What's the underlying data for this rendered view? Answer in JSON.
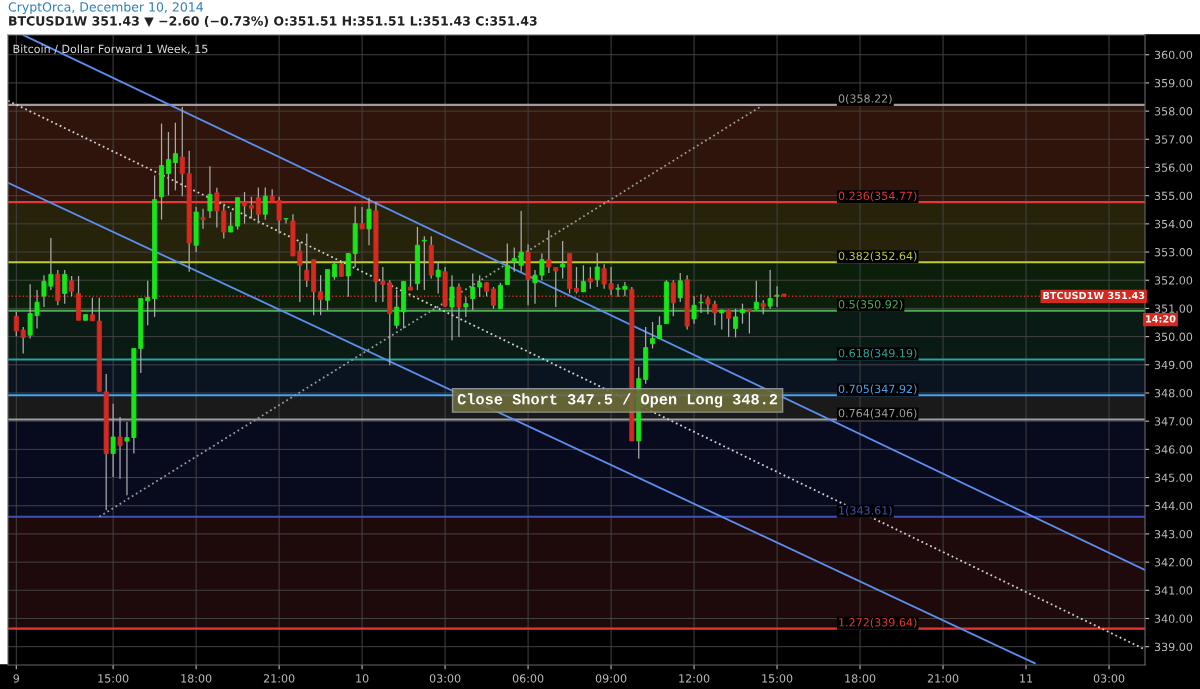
{
  "chart_data": {
    "type": "candlestick",
    "title": "Bitcoin / Dollar Forward 1 Week, 15",
    "subtitle": "BTCUSD1W 351.43 ▼ −2.60 (−0.73%) O:351.51 H:351.51 L:351.43 C:351.43",
    "annotations": [
      "CryptOrca, December 10, 2014",
      "Close Short 347.5 / Open Long 348.2",
      {
        "text": "14:20",
        "y": 350.6
      }
    ],
    "colors": [
      "#d42a20",
      "#d42a20",
      "#19e619",
      "#19e619",
      "#19e619",
      "#19e619",
      "#d42a20",
      "#19e619",
      "#d42a20",
      "#d42a20",
      "#19e619",
      "#d42a20",
      "#d42a20",
      "#d42a20",
      "#19e619",
      "#d42a20",
      "#19e619",
      "#19e619",
      "#19e619",
      "#19e619",
      "#19e619",
      "#19e619",
      "#19e619",
      "#19e619",
      "#d42a20",
      "#d42a20",
      "#19e619",
      "#d42a20",
      "#19e619",
      "#d42a20",
      "#d42a20",
      "#19e619",
      "#19e619",
      "#d42a20",
      "#d42a20",
      "#d42a20",
      "#19e619",
      "#d42a20",
      "#d42a20",
      "#19e619",
      "#d42a20",
      "#d42a20",
      "#d42a20",
      "#d42a20",
      "#d42a20",
      "#19e619",
      "#19e619",
      "#d42a20",
      "#19e619",
      "#19e619",
      "#d42a20",
      "#19e619",
      "#d42a20",
      "#d42a20",
      "#d42a20",
      "#19e619",
      "#19e619",
      "#d42a20",
      "#19e619",
      "#19e619",
      "#d42a20",
      "#19e619",
      "#d42a20",
      "#19e619",
      "#d42a20",
      "#19e619",
      "#19e619",
      "#19e619",
      "#d42a20",
      "#d42a20",
      "#19e619",
      "#19e619",
      "#19e619",
      "#19e619",
      "#d42a20",
      "#19e619",
      "#19e619",
      "#d42a20",
      "#d42a20",
      "#19e619",
      "#d42a20",
      "#d42a20",
      "#19e619",
      "#d42a20",
      "#19e619",
      "#d42a20",
      "#d42a20",
      "#19e619",
      "#19e619",
      "#d42a20",
      "#19e619",
      "#19e619",
      "#19e619",
      "#19e619",
      "#19e619",
      "#d42a20",
      "#19e619",
      "#d42a20",
      "#19e619",
      "#19e619",
      "#d42a20",
      "#d42a20",
      "#19e619",
      "#d42a20",
      "#19e619",
      "#19e619",
      "#d42a20",
      "#19e619",
      "#d42a20",
      "#19e619",
      "#19e619",
      "#d42a20"
    ],
    "x": [
      "2014-12-09T11:30",
      "2014-12-09T11:45",
      "2014-12-09T12:00",
      "2014-12-09T12:15",
      "2014-12-09T12:30",
      "2014-12-09T12:45",
      "2014-12-09T13:00",
      "2014-12-09T13:15",
      "2014-12-09T13:30",
      "2014-12-09T13:45",
      "2014-12-09T14:00",
      "2014-12-09T14:15",
      "2014-12-09T14:30",
      "2014-12-09T14:45",
      "2014-12-09T15:00",
      "2014-12-09T15:15",
      "2014-12-09T15:30",
      "2014-12-09T15:45",
      "2014-12-09T16:00",
      "2014-12-09T16:15",
      "2014-12-09T16:30",
      "2014-12-09T16:45",
      "2014-12-09T17:00",
      "2014-12-09T17:15",
      "2014-12-09T17:30",
      "2014-12-09T17:45",
      "2014-12-09T18:00",
      "2014-12-09T18:15",
      "2014-12-09T18:30",
      "2014-12-09T18:45",
      "2014-12-09T19:00",
      "2014-12-09T19:15",
      "2014-12-09T19:30",
      "2014-12-09T19:45",
      "2014-12-09T20:00",
      "2014-12-09T20:15",
      "2014-12-09T20:30",
      "2014-12-09T20:45",
      "2014-12-09T21:00",
      "2014-12-09T21:15",
      "2014-12-09T21:30",
      "2014-12-09T21:45",
      "2014-12-09T22:00",
      "2014-12-09T22:15",
      "2014-12-09T22:30",
      "2014-12-09T22:45",
      "2014-12-09T23:00",
      "2014-12-09T23:15",
      "2014-12-09T23:30",
      "2014-12-09T23:45",
      "2014-12-10T00:00",
      "2014-12-10T00:15",
      "2014-12-10T00:30",
      "2014-12-10T00:45",
      "2014-12-10T01:00",
      "2014-12-10T01:15",
      "2014-12-10T01:30",
      "2014-12-10T01:45",
      "2014-12-10T02:00",
      "2014-12-10T02:15",
      "2014-12-10T02:30",
      "2014-12-10T02:45",
      "2014-12-10T03:00",
      "2014-12-10T03:15",
      "2014-12-10T03:30",
      "2014-12-10T03:45",
      "2014-12-10T04:00",
      "2014-12-10T04:15",
      "2014-12-10T04:30",
      "2014-12-10T04:45",
      "2014-12-10T05:00",
      "2014-12-10T05:15",
      "2014-12-10T05:30",
      "2014-12-10T05:45",
      "2014-12-10T06:00",
      "2014-12-10T06:15",
      "2014-12-10T06:30",
      "2014-12-10T06:45",
      "2014-12-10T07:00",
      "2014-12-10T07:15",
      "2014-12-10T07:30",
      "2014-12-10T07:45",
      "2014-12-10T08:00",
      "2014-12-10T08:15",
      "2014-12-10T08:30",
      "2014-12-10T08:45",
      "2014-12-10T09:00",
      "2014-12-10T09:15",
      "2014-12-10T09:30",
      "2014-12-10T09:45",
      "2014-12-10T10:00",
      "2014-12-10T10:15",
      "2014-12-10T10:30",
      "2014-12-10T10:45",
      "2014-12-10T11:00",
      "2014-12-10T11:15",
      "2014-12-10T11:30",
      "2014-12-10T11:45",
      "2014-12-10T12:00",
      "2014-12-10T12:15",
      "2014-12-10T12:30",
      "2014-12-10T12:45",
      "2014-12-10T13:00",
      "2014-12-10T13:15",
      "2014-12-10T13:30",
      "2014-12-10T13:45",
      "2014-12-10T14:00",
      "2014-12-10T14:15",
      "2014-12-10T14:30",
      "2014-12-10T14:45",
      "2014-12-10T15:00",
      "2014-12-10T15:15"
    ],
    "ohlc": [
      [
        350.72,
        350.88,
        350.01,
        350.2
      ],
      [
        350.23,
        350.34,
        349.4,
        349.97
      ],
      [
        350.05,
        351.86,
        349.93,
        350.82
      ],
      [
        350.75,
        351.65,
        350.29,
        351.22
      ],
      [
        351.44,
        352.18,
        351.05,
        351.96
      ],
      [
        351.79,
        353.5,
        351.65,
        352.21
      ],
      [
        352.21,
        352.36,
        351.11,
        351.27
      ],
      [
        351.53,
        352.36,
        351.17,
        352.21
      ],
      [
        351.98,
        352.15,
        351.43,
        351.61
      ],
      [
        351.53,
        352.15,
        350.58,
        350.58
      ],
      [
        350.58,
        350.78,
        350.58,
        350.78
      ],
      [
        350.78,
        351.38,
        350.56,
        350.56
      ],
      [
        350.55,
        351.38,
        348.04,
        348.06
      ],
      [
        348.04,
        348.67,
        343.84,
        345.85
      ],
      [
        345.85,
        347.62,
        345.02,
        346.44
      ],
      [
        346.44,
        347.15,
        344.96,
        346.13
      ],
      [
        346.29,
        346.97,
        344.37,
        346.42
      ],
      [
        346.42,
        349.58,
        345.85,
        349.58
      ],
      [
        349.58,
        351.35,
        348.71,
        351.35
      ],
      [
        351.27,
        351.98,
        350.4,
        351.39
      ],
      [
        351.35,
        355.72,
        350.7,
        354.86
      ],
      [
        354.96,
        357.56,
        354.15,
        356.07
      ],
      [
        355.78,
        357.26,
        355.01,
        356.28
      ],
      [
        356.17,
        357.59,
        355.19,
        356.49
      ],
      [
        356.37,
        358.15,
        354.98,
        355.78
      ],
      [
        355.78,
        356.59,
        352.3,
        353.32
      ],
      [
        353.24,
        354.6,
        353.0,
        354.42
      ],
      [
        354.22,
        354.54,
        353.83,
        354.15
      ],
      [
        354.46,
        356.04,
        354.21,
        355.05
      ],
      [
        355.1,
        355.28,
        353.87,
        354.46
      ],
      [
        354.46,
        354.66,
        353.48,
        353.71
      ],
      [
        353.71,
        354.42,
        353.71,
        353.92
      ],
      [
        353.92,
        354.93,
        353.8,
        354.93
      ],
      [
        354.77,
        355.13,
        354.01,
        354.64
      ],
      [
        354.65,
        354.96,
        354.19,
        354.55
      ],
      [
        354.93,
        355.29,
        354.01,
        354.34
      ],
      [
        354.34,
        355.29,
        354.15,
        354.98
      ],
      [
        354.98,
        355.23,
        354.81,
        354.81
      ],
      [
        354.83,
        354.96,
        353.66,
        354.13
      ],
      [
        354.17,
        354.19,
        354.01,
        354.19
      ],
      [
        354.1,
        354.34,
        352.86,
        352.86
      ],
      [
        353.03,
        353.36,
        351.23,
        352.53
      ],
      [
        352.35,
        353.66,
        351.76,
        352.0
      ],
      [
        352.73,
        352.73,
        350.76,
        351.59
      ],
      [
        351.59,
        352.18,
        350.76,
        351.31
      ],
      [
        351.29,
        352.38,
        350.94,
        352.38
      ],
      [
        352.12,
        352.65,
        352.02,
        352.57
      ],
      [
        352.57,
        352.62,
        352.12,
        352.14
      ],
      [
        352.15,
        352.95,
        351.41,
        352.95
      ],
      [
        352.95,
        354.62,
        352.47,
        354.01
      ],
      [
        354.01,
        354.6,
        353.82,
        353.82
      ],
      [
        353.82,
        354.93,
        353.24,
        354.52
      ],
      [
        354.46,
        354.78,
        351.23,
        351.94
      ],
      [
        351.96,
        352.47,
        351.23,
        351.85
      ],
      [
        351.91,
        352.0,
        348.98,
        350.82
      ],
      [
        350.4,
        351.65,
        350.29,
        351.05
      ],
      [
        350.88,
        351.96,
        350.29,
        351.96
      ],
      [
        351.76,
        352.59,
        351.65,
        351.65
      ],
      [
        351.88,
        353.89,
        351.65,
        353.24
      ],
      [
        353.39,
        353.56,
        351.65,
        353.42
      ],
      [
        353.24,
        353.56,
        352.06,
        352.18
      ],
      [
        352.12,
        352.65,
        351.53,
        352.36
      ],
      [
        352.3,
        352.47,
        351.05,
        351.08
      ],
      [
        351.05,
        352.18,
        349.87,
        351.76
      ],
      [
        351.76,
        351.88,
        349.99,
        351.05
      ],
      [
        351.05,
        351.41,
        350.7,
        351.17
      ],
      [
        351.35,
        352.24,
        350.94,
        351.76
      ],
      [
        351.76,
        352.18,
        351.41,
        351.91
      ],
      [
        351.91,
        351.94,
        351.43,
        351.61
      ],
      [
        351.69,
        351.76,
        350.99,
        351.11
      ],
      [
        350.99,
        351.91,
        350.99,
        351.82
      ],
      [
        351.85,
        353.3,
        351.85,
        352.53
      ],
      [
        352.65,
        353.16,
        352.3,
        352.77
      ],
      [
        352.53,
        354.46,
        352.3,
        353.0
      ],
      [
        353.0,
        353.28,
        351.11,
        352.03
      ],
      [
        351.91,
        352.36,
        351.17,
        352.18
      ],
      [
        352.18,
        352.95,
        352.0,
        352.73
      ],
      [
        352.73,
        353.77,
        352.26,
        352.47
      ],
      [
        352.45,
        352.47,
        351.05,
        352.33
      ],
      [
        352.47,
        353.39,
        352.06,
        352.57
      ],
      [
        352.95,
        352.95,
        351.53,
        351.7
      ],
      [
        351.71,
        352.47,
        351.53,
        351.6
      ],
      [
        351.59,
        352.53,
        351.59,
        351.96
      ],
      [
        352.06,
        352.47,
        351.7,
        351.94
      ],
      [
        352.02,
        352.97,
        351.76,
        352.47
      ],
      [
        352.41,
        352.57,
        351.7,
        351.86
      ],
      [
        351.88,
        352.47,
        351.47,
        351.68
      ],
      [
        351.68,
        351.86,
        351.41,
        351.72
      ],
      [
        351.68,
        351.94,
        351.43,
        351.79
      ],
      [
        351.68,
        351.76,
        346.3,
        346.3
      ],
      [
        346.3,
        348.93,
        345.67,
        348.51
      ],
      [
        348.48,
        350.34,
        348.33,
        349.61
      ],
      [
        349.75,
        350.52,
        349.58,
        349.93
      ],
      [
        349.93,
        350.72,
        349.93,
        350.4
      ],
      [
        350.46,
        352.0,
        350.46,
        351.94
      ],
      [
        351.91,
        352.0,
        350.72,
        351.2
      ],
      [
        351.38,
        352.26,
        351.23,
        351.98
      ],
      [
        352.02,
        352.18,
        350.25,
        350.37
      ],
      [
        350.63,
        351.43,
        350.46,
        351.11
      ],
      [
        351.2,
        351.5,
        350.84,
        351.22
      ],
      [
        351.34,
        351.41,
        350.79,
        351.15
      ],
      [
        351.15,
        351.27,
        350.4,
        350.84
      ],
      [
        350.84,
        350.96,
        350.25,
        350.94
      ],
      [
        350.94,
        350.96,
        349.99,
        350.65
      ],
      [
        350.29,
        350.99,
        349.97,
        350.7
      ],
      [
        350.84,
        351.17,
        350.46,
        350.96
      ],
      [
        350.96,
        350.96,
        350.11,
        350.89
      ],
      [
        350.98,
        351.98,
        350.94,
        351.22
      ],
      [
        351.17,
        351.29,
        350.79,
        351.05
      ],
      [
        351.08,
        352.36,
        350.99,
        351.35
      ],
      [
        351.43,
        351.79,
        351.05,
        351.47
      ],
      [
        351.51,
        351.51,
        351.43,
        351.43
      ]
    ],
    "series": [
      {
        "type": "line",
        "x": [
          "2014-12-09T11:45",
          "2014-12-11T04:18"
        ],
        "values": [
          360.7,
          341.72
        ],
        "color": "#5b8ff0",
        "line_style": "solid"
      },
      {
        "type": "line",
        "x": [
          "2014-12-09T11:12",
          "2014-12-11T00:19"
        ],
        "values": [
          355.46,
          338.41
        ],
        "color": "#5b8ff0",
        "line_style": "solid"
      },
      {
        "type": "line",
        "x": [
          "2014-12-09T11:12",
          "2014-12-11T04:18"
        ],
        "values": [
          358.37,
          338.9
        ],
        "color": "#cfcfcf",
        "line_style": "dotted"
      },
      {
        "type": "line",
        "x": [
          "2014-12-09T14:30",
          "2014-12-10T14:30"
        ],
        "values": [
          343.61,
          358.22
        ],
        "color": "#9a9a9a",
        "line_style": "dotted"
      }
    ],
    "ref_lines": [
      {
        "axis": "y",
        "value": 358.22,
        "label": "0(358.22)",
        "color": "#9e9e9e"
      },
      {
        "axis": "y",
        "value": 354.77,
        "label": "0.236(354.77)",
        "color": "#e53935"
      },
      {
        "axis": "y",
        "value": 352.64,
        "label": "0.382(352.64)",
        "color": "#c0ca33"
      },
      {
        "axis": "y",
        "value": 350.92,
        "label": "0.5(350.92)",
        "color": "#4caf50"
      },
      {
        "axis": "y",
        "value": 349.19,
        "label": "0.618(349.19)",
        "color": "#26a69a"
      },
      {
        "axis": "y",
        "value": 347.92,
        "label": "0.705(347.92)",
        "color": "#42a5f5"
      },
      {
        "axis": "y",
        "value": 347.06,
        "label": "0.764(347.06)",
        "color": "#9e9e9e"
      },
      {
        "axis": "y",
        "value": 343.61,
        "label": "1(343.61)",
        "color": "#3f51b5"
      },
      {
        "axis": "y",
        "value": 339.64,
        "label": "1.272(339.64)",
        "color": "#e53935"
      },
      {
        "axis": "y",
        "value": 351.43,
        "label": "BTCUSD1W 351.43",
        "color": "#d42a20",
        "line_style": "dotted"
      }
    ],
    "bands": [
      {
        "axis": "y",
        "from": 354.77,
        "to": 358.22,
        "color": "#2e140a"
      },
      {
        "axis": "y",
        "from": 352.64,
        "to": 354.77,
        "color": "#26230a"
      },
      {
        "axis": "y",
        "from": 350.92,
        "to": 352.64,
        "color": "#0c1f0a"
      },
      {
        "axis": "y",
        "from": 349.19,
        "to": 350.92,
        "color": "#0a1a14"
      },
      {
        "axis": "y",
        "from": 347.92,
        "to": 349.19,
        "color": "#0a1420"
      },
      {
        "axis": "y",
        "from": 347.06,
        "to": 347.92,
        "color": "#1a1a1a"
      },
      {
        "axis": "y",
        "from": 343.61,
        "to": 347.06,
        "color": "#080a1e"
      },
      {
        "axis": "y",
        "from": 339.64,
        "to": 343.61,
        "color": "#1e0a0a"
      }
    ],
    "xlim": [
      "2014-12-09T11:12",
      "2014-12-11T04:18"
    ],
    "ylim": [
      338.35,
      360.7
    ],
    "xticks": [
      {
        "value": "2014-12-09T11:30",
        "label": "9"
      },
      {
        "value": "2014-12-09T15:00",
        "label": "15:00"
      },
      {
        "value": "2014-12-09T18:00",
        "label": "18:00"
      },
      {
        "value": "2014-12-09T21:00",
        "label": "21:00"
      },
      {
        "value": "2014-12-10T00:00",
        "label": "10"
      },
      {
        "value": "2014-12-10T03:00",
        "label": "03:00"
      },
      {
        "value": "2014-12-10T06:00",
        "label": "06:00"
      },
      {
        "value": "2014-12-10T09:00",
        "label": "09:00"
      },
      {
        "value": "2014-12-10T12:00",
        "label": "12:00"
      },
      {
        "value": "2014-12-10T15:00",
        "label": "15:00"
      },
      {
        "value": "2014-12-10T18:00",
        "label": "18:00"
      },
      {
        "value": "2014-12-10T21:00",
        "label": "21:00"
      },
      {
        "value": "2014-12-11T00:00",
        "label": "11"
      },
      {
        "value": "2014-12-11T03:00",
        "label": "03:00"
      }
    ],
    "yticks": [
      {
        "value": 339,
        "label": "339.00"
      },
      {
        "value": 340,
        "label": "340.00"
      },
      {
        "value": 341,
        "label": "341.00"
      },
      {
        "value": 342,
        "label": "342.00"
      },
      {
        "value": 343,
        "label": "343.00"
      },
      {
        "value": 344,
        "label": "344.00"
      },
      {
        "value": 345,
        "label": "345.00"
      },
      {
        "value": 346,
        "label": "346.00"
      },
      {
        "value": 347,
        "label": "347.00"
      },
      {
        "value": 348,
        "label": "348.00"
      },
      {
        "value": 349,
        "label": "349.00"
      },
      {
        "value": 350,
        "label": "350.00"
      },
      {
        "value": 351,
        "label": "351.00"
      },
      {
        "value": 352,
        "label": "352.00"
      },
      {
        "value": 353,
        "label": "353.00"
      },
      {
        "value": 354,
        "label": "354.00"
      },
      {
        "value": 355,
        "label": "355.00"
      },
      {
        "value": 356,
        "label": "356.00"
      },
      {
        "value": 357,
        "label": "357.00"
      },
      {
        "value": 358,
        "label": "358.00"
      },
      {
        "value": 359,
        "label": "359.00"
      },
      {
        "value": 360,
        "label": "360.00"
      }
    ],
    "grid": true
  }
}
